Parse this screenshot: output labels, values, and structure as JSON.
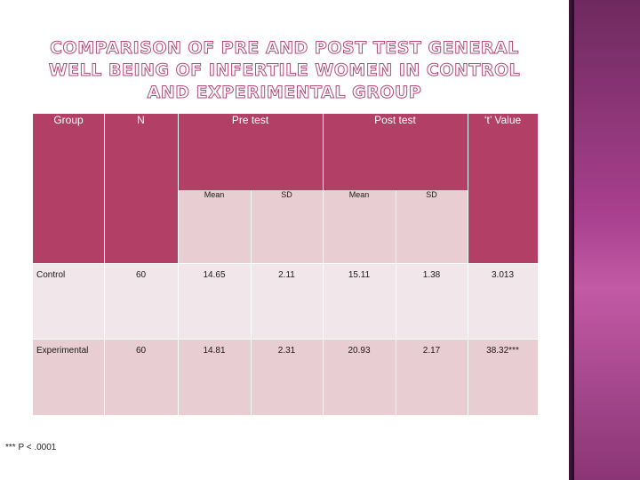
{
  "title": "COMPARISON OF PRE AND POST TEST GENERAL WELL BEING OF INFERTILE  WOMEN IN CONTROL AND EXPERIMENTAL GROUP",
  "table": {
    "headers": {
      "group": "Group",
      "n": "N",
      "pre": "Pre test",
      "post": "Post test",
      "t": "‘t’ Value"
    },
    "subheaders": {
      "pre_mean": "Mean",
      "pre_sd": "SD",
      "post_mean": "Mean",
      "post_sd": "SD"
    },
    "rows": [
      {
        "group": "Control",
        "n": "60",
        "pre_mean": "14.65",
        "pre_sd": "2.11",
        "post_mean": "15.11",
        "post_sd": "1.38",
        "t": "3.013"
      },
      {
        "group": "Experimental",
        "n": "60",
        "pre_mean": "14.81",
        "pre_sd": "2.31",
        "post_mean": "20.93",
        "post_sd": "2.17",
        "t": "38.32***"
      }
    ]
  },
  "footnote": "*** P < .0001",
  "colors": {
    "header": "#b13f66",
    "row_light": "#f1e6e9",
    "row_dark": "#e8cdd3",
    "panel": "#a9408f"
  }
}
